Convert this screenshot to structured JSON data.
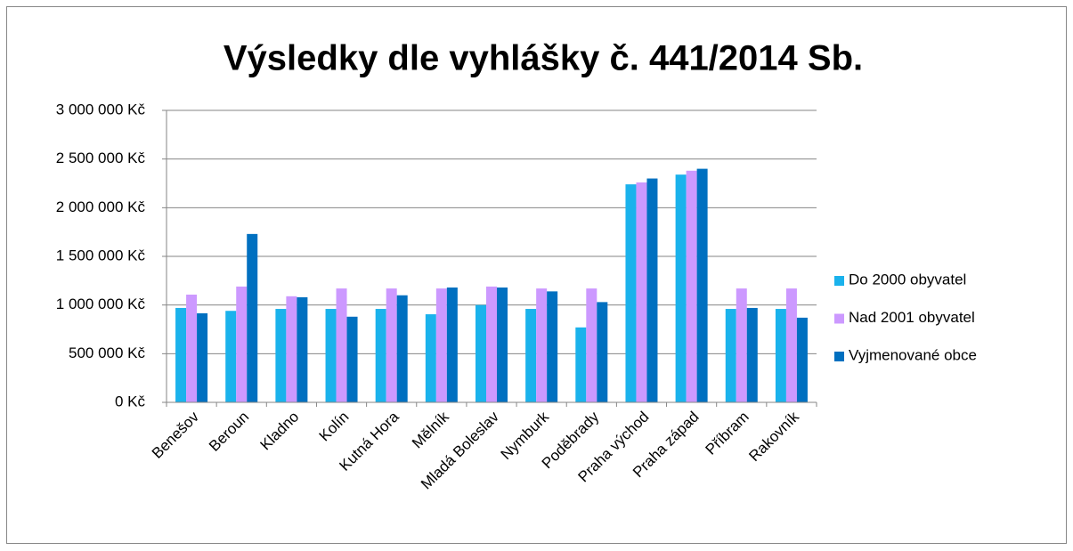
{
  "chart_data": {
    "type": "bar",
    "title": "Výsledky dle vyhlášky č. 441/2014 Sb.",
    "categories": [
      "Benešov",
      "Beroun",
      "Kladno",
      "Kolín",
      "Kutná Hora",
      "Mělník",
      "Mladá Boleslav",
      "Nymburk",
      "Poděbrady",
      "Praha východ",
      "Praha západ",
      "Příbram",
      "Rakovník"
    ],
    "series": [
      {
        "name": "Do 2000 obyvatel",
        "color": "#1ab2ec",
        "values": [
          970000,
          940000,
          960000,
          960000,
          960000,
          905000,
          1000000,
          960000,
          770000,
          2240000,
          2340000,
          960000,
          960000
        ]
      },
      {
        "name": "Nad 2001 obyvatel",
        "color": "#cc99ff",
        "values": [
          1107000,
          1190000,
          1090000,
          1170000,
          1170000,
          1170000,
          1190000,
          1170000,
          1170000,
          2260000,
          2380000,
          1170000,
          1170000
        ]
      },
      {
        "name": "Vyjmenované obce",
        "color": "#0070c0",
        "values": [
          915000,
          1730000,
          1080000,
          880000,
          1100000,
          1180000,
          1180000,
          1140000,
          1030000,
          2300000,
          2400000,
          970000,
          870000
        ]
      }
    ],
    "ylim": [
      0,
      3000000
    ],
    "yticks": [
      {
        "value": 0,
        "label": "0 Kč"
      },
      {
        "value": 500000,
        "label": "500 000 Kč"
      },
      {
        "value": 1000000,
        "label": "1 000 000 Kč"
      },
      {
        "value": 1500000,
        "label": "1 500 000 Kč"
      },
      {
        "value": 2000000,
        "label": "2 000 000 Kč"
      },
      {
        "value": 2500000,
        "label": "2 500 000 Kč"
      },
      {
        "value": 3000000,
        "label": "3 000 000 Kč"
      }
    ],
    "grid": true,
    "legend": "right"
  }
}
